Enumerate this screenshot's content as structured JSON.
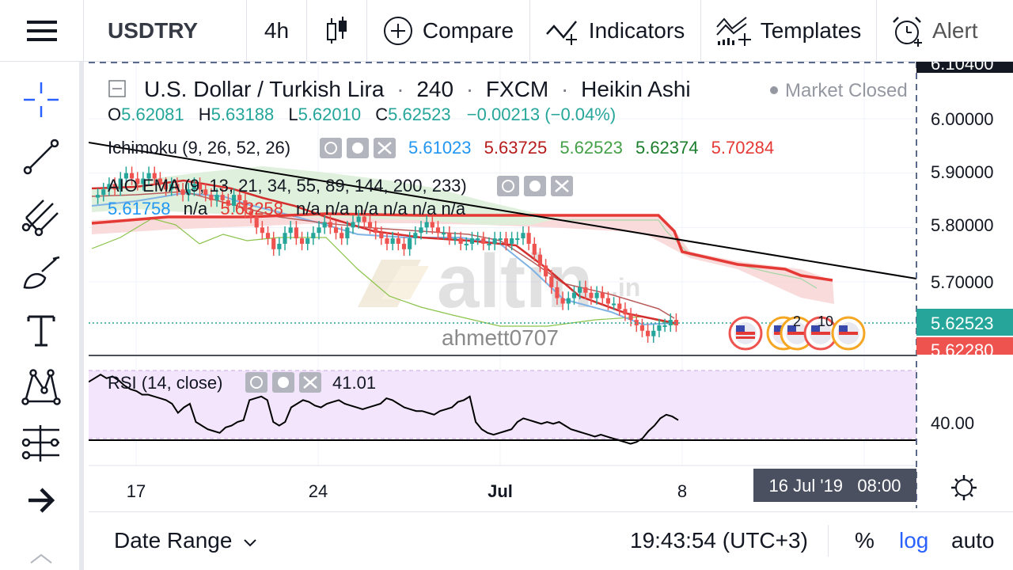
{
  "toolbar": {
    "symbol": "USDTRY",
    "interval": "4h",
    "compare_label": "Compare",
    "indicators_label": "Indicators",
    "templates_label": "Templates",
    "alert_label": "Alert"
  },
  "left_tools": [
    "crosshair-icon",
    "trend-line-icon",
    "pitchfork-icon",
    "brush-icon",
    "text-icon",
    "pattern-icon",
    "measure-icon",
    "arrow-right-icon"
  ],
  "legend": {
    "title": "U.S. Dollar / Turkish Lira",
    "interval": "240",
    "exchange": "FXCM",
    "style": "Heikin Ashi",
    "sep": "·",
    "market_status": "Market Closed",
    "o_label": "O",
    "o_value": "5.62081",
    "h_label": "H",
    "h_value": "5.63188",
    "l_label": "L",
    "l_value": "5.62010",
    "c_label": "C",
    "c_value": "5.62523",
    "change": "−0.00213 (−0.04%)"
  },
  "ichimoku": {
    "label": "Ichimoku (9, 26, 52, 26)",
    "values": [
      {
        "text": "5.61023",
        "color": "#2196f3"
      },
      {
        "text": "5.63725",
        "color": "#b71c1c"
      },
      {
        "text": "5.62523",
        "color": "#43a047"
      },
      {
        "text": "5.62374",
        "color": "#1b7e2c"
      },
      {
        "text": "5.70284",
        "color": "#e53935"
      }
    ]
  },
  "ema": {
    "label": "AIO EMA (9, 13, 21, 34, 55, 89, 144, 200, 233)",
    "values": [
      {
        "text": "5.61758",
        "color": "#2196f3"
      },
      {
        "text": "n/a",
        "color": "#131722"
      },
      {
        "text": "5.63258",
        "color": "#e53935"
      },
      {
        "text": "n/a n/a n/a n/a n/a n/a",
        "color": "#131722"
      }
    ]
  },
  "rsi": {
    "label": "RSI (14, close)",
    "value": "41.01",
    "axis_label": "40.00"
  },
  "watermark": {
    "brand": "altin",
    "suffix": ".in",
    "author": "ahmett0707"
  },
  "events": {
    "count_a": "2",
    "count_b": "10"
  },
  "price_axis": {
    "top_partial": "6.10400",
    "ticks": [
      "6.00000",
      "5.90000",
      "5.80000",
      "5.70000"
    ],
    "current_price": "5.62523",
    "red_price": "5.62280"
  },
  "time_axis": {
    "ticks": [
      "17",
      "24",
      "Jul",
      "8"
    ],
    "crosshair_label": "16 Jul '19   08:00"
  },
  "bottom": {
    "date_range": "Date Range",
    "clock": "19:43:54 (UTC+3)",
    "percent": "%",
    "log": "log",
    "auto": "auto"
  },
  "colors": {
    "up": "#26a69a",
    "down": "#ef5350",
    "cloud_red": "#f8d7d7",
    "cloud_green": "#dcefd8",
    "rsi_band": "#f1e3fb",
    "current_price_bg": "#26a69a",
    "red_price_bg": "#ef5350"
  },
  "chart_data": {
    "type": "candlestick",
    "symbol": "USDTRY",
    "style": "Heikin Ashi",
    "price_axis": {
      "min": 5.6,
      "max": 6.1,
      "ticks": [
        6.0,
        5.9,
        5.8,
        5.7
      ]
    },
    "x_ticks": [
      "17",
      "24",
      "Jul",
      "8"
    ],
    "candles_close": [
      5.86,
      5.87,
      5.88,
      5.87,
      5.89,
      5.9,
      5.89,
      5.88,
      5.89,
      5.9,
      5.89,
      5.88,
      5.87,
      5.88,
      5.87,
      5.86,
      5.87,
      5.88,
      5.87,
      5.86,
      5.85,
      5.86,
      5.85,
      5.84,
      5.86,
      5.85,
      5.83,
      5.82,
      5.8,
      5.79,
      5.78,
      5.76,
      5.77,
      5.79,
      5.8,
      5.78,
      5.77,
      5.78,
      5.79,
      5.8,
      5.81,
      5.8,
      5.79,
      5.78,
      5.8,
      5.81,
      5.82,
      5.81,
      5.8,
      5.79,
      5.78,
      5.77,
      5.78,
      5.77,
      5.76,
      5.78,
      5.79,
      5.8,
      5.81,
      5.8,
      5.79,
      5.79,
      5.78,
      5.78,
      5.77,
      5.77,
      5.78,
      5.78,
      5.77,
      5.77,
      5.78,
      5.78,
      5.77,
      5.78,
      5.78,
      5.79,
      5.77,
      5.75,
      5.73,
      5.71,
      5.69,
      5.67,
      5.66,
      5.67,
      5.68,
      5.69,
      5.68,
      5.67,
      5.68,
      5.67,
      5.66,
      5.66,
      5.65,
      5.64,
      5.63,
      5.62,
      5.61,
      5.6,
      5.61,
      5.62,
      5.62,
      5.63,
      5.62
    ],
    "trend_line": {
      "from": 5.87,
      "to": 5.7
    },
    "current_price": 5.62523,
    "rsi": {
      "value": 41.01,
      "level": 40.0,
      "series": [
        62,
        64,
        66,
        64,
        65,
        63,
        60,
        58,
        57,
        55,
        55,
        54,
        53,
        52,
        50,
        45,
        48,
        50,
        40,
        38,
        36,
        35,
        34,
        37,
        38,
        40,
        41,
        52,
        53,
        54,
        52,
        40,
        38,
        40,
        48,
        50,
        52,
        51,
        49,
        48,
        50,
        51,
        52,
        50,
        49,
        48,
        47,
        48,
        49,
        50,
        53,
        52,
        50,
        48,
        47,
        46,
        46,
        45,
        44,
        46,
        47,
        48,
        51,
        52,
        54,
        40,
        36,
        34,
        33,
        34,
        35,
        36,
        40,
        42,
        41,
        40,
        39,
        40,
        39,
        40,
        38,
        36,
        35,
        34,
        33,
        32,
        33,
        32,
        31,
        30,
        29,
        28,
        29,
        31,
        35,
        38,
        42,
        44,
        43,
        41
      ]
    }
  }
}
